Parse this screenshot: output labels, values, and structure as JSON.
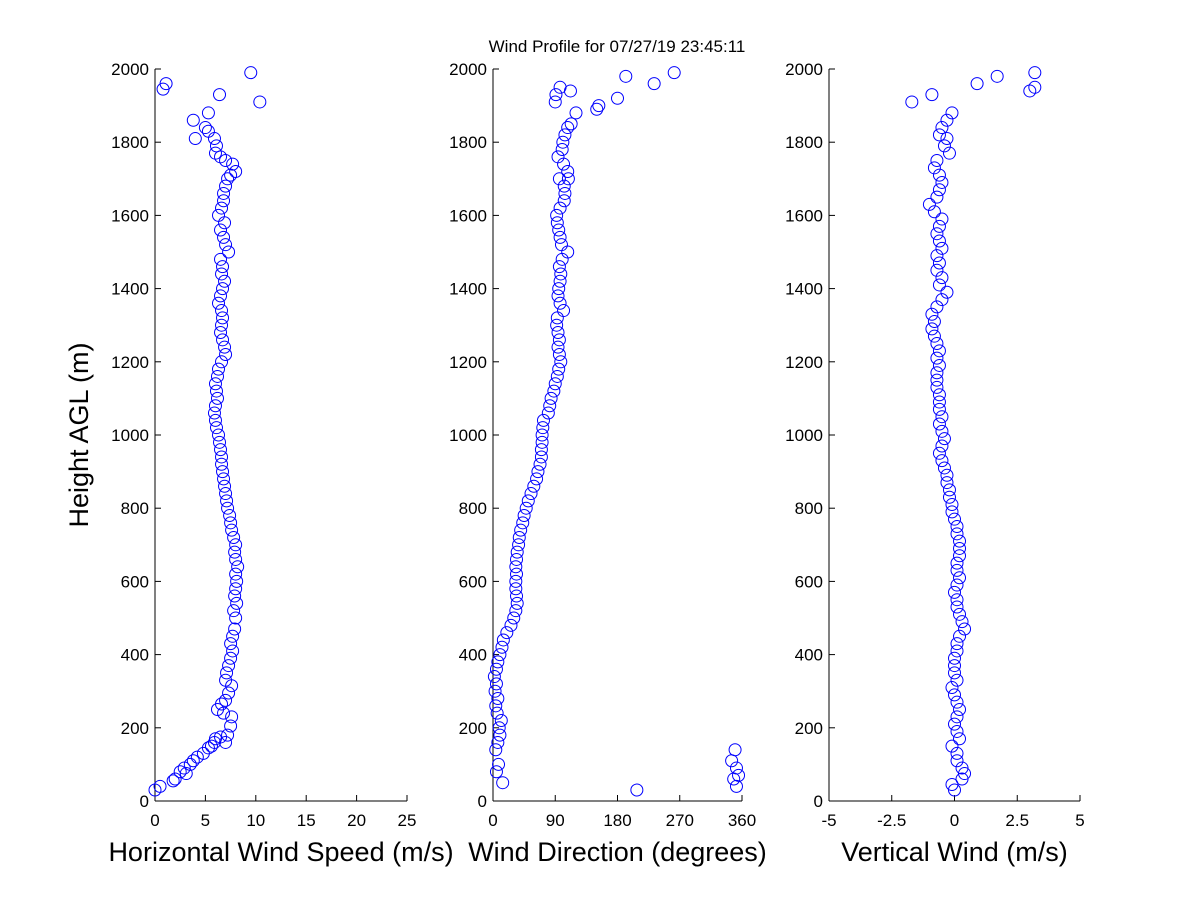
{
  "title": "Wind Profile for  07/27/19 23:45:11",
  "ylabel": "Height AGL (m)",
  "marker_color": "#0000ff",
  "chart_data": [
    {
      "type": "scatter",
      "xlabel": "Horizontal Wind Speed (m/s)",
      "xlim": [
        0,
        25
      ],
      "xticks": [
        "0",
        "5",
        "10",
        "15",
        "20",
        "25"
      ],
      "ylim": [
        0,
        2000
      ],
      "yticks": [
        "0",
        "200",
        "400",
        "600",
        "800",
        "1000",
        "1200",
        "1400",
        "1600",
        "1800",
        "2000"
      ],
      "points": [
        [
          0.0,
          30
        ],
        [
          0.5,
          40
        ],
        [
          1.8,
          55
        ],
        [
          2.0,
          60
        ],
        [
          2.5,
          80
        ],
        [
          2.9,
          90
        ],
        [
          3.1,
          75
        ],
        [
          3.5,
          100
        ],
        [
          3.8,
          110
        ],
        [
          4.2,
          120
        ],
        [
          4.8,
          130
        ],
        [
          5.3,
          145
        ],
        [
          5.6,
          150
        ],
        [
          5.9,
          160
        ],
        [
          6.5,
          175
        ],
        [
          6.0,
          170
        ],
        [
          7.0,
          160
        ],
        [
          7.2,
          180
        ],
        [
          7.5,
          205
        ],
        [
          7.6,
          230
        ],
        [
          6.8,
          240
        ],
        [
          6.2,
          250
        ],
        [
          6.6,
          265
        ],
        [
          7.0,
          275
        ],
        [
          7.3,
          295
        ],
        [
          7.6,
          315
        ],
        [
          7.0,
          330
        ],
        [
          7.1,
          350
        ],
        [
          7.3,
          370
        ],
        [
          7.5,
          390
        ],
        [
          7.7,
          410
        ],
        [
          7.5,
          430
        ],
        [
          7.7,
          450
        ],
        [
          7.9,
          470
        ],
        [
          8.0,
          500
        ],
        [
          7.8,
          520
        ],
        [
          8.1,
          540
        ],
        [
          7.9,
          560
        ],
        [
          8.0,
          580
        ],
        [
          8.1,
          600
        ],
        [
          8.0,
          620
        ],
        [
          8.2,
          640
        ],
        [
          8.0,
          660
        ],
        [
          7.9,
          680
        ],
        [
          8.0,
          700
        ],
        [
          7.8,
          720
        ],
        [
          7.6,
          740
        ],
        [
          7.5,
          760
        ],
        [
          7.4,
          780
        ],
        [
          7.2,
          800
        ],
        [
          7.1,
          820
        ],
        [
          7.0,
          840
        ],
        [
          6.9,
          860
        ],
        [
          6.8,
          880
        ],
        [
          6.7,
          900
        ],
        [
          6.6,
          920
        ],
        [
          6.6,
          940
        ],
        [
          6.5,
          960
        ],
        [
          6.4,
          980
        ],
        [
          6.3,
          1000
        ],
        [
          6.1,
          1020
        ],
        [
          6.0,
          1040
        ],
        [
          5.9,
          1060
        ],
        [
          6.0,
          1080
        ],
        [
          6.2,
          1100
        ],
        [
          6.1,
          1120
        ],
        [
          6.0,
          1140
        ],
        [
          6.2,
          1160
        ],
        [
          6.3,
          1180
        ],
        [
          6.6,
          1200
        ],
        [
          7.0,
          1220
        ],
        [
          6.9,
          1240
        ],
        [
          6.7,
          1260
        ],
        [
          6.5,
          1280
        ],
        [
          6.6,
          1300
        ],
        [
          6.7,
          1320
        ],
        [
          6.6,
          1340
        ],
        [
          6.3,
          1360
        ],
        [
          6.5,
          1380
        ],
        [
          6.7,
          1400
        ],
        [
          6.9,
          1420
        ],
        [
          6.6,
          1440
        ],
        [
          6.7,
          1460
        ],
        [
          6.5,
          1480
        ],
        [
          7.3,
          1500
        ],
        [
          7.0,
          1520
        ],
        [
          6.8,
          1540
        ],
        [
          6.5,
          1560
        ],
        [
          6.9,
          1580
        ],
        [
          6.3,
          1600
        ],
        [
          6.6,
          1620
        ],
        [
          6.8,
          1640
        ],
        [
          6.8,
          1660
        ],
        [
          7.0,
          1680
        ],
        [
          7.2,
          1700
        ],
        [
          7.5,
          1710
        ],
        [
          8.0,
          1720
        ],
        [
          7.7,
          1740
        ],
        [
          7.0,
          1750
        ],
        [
          6.5,
          1760
        ],
        [
          6.0,
          1770
        ],
        [
          6.1,
          1790
        ],
        [
          5.9,
          1810
        ],
        [
          5.3,
          1830
        ],
        [
          5.0,
          1840
        ],
        [
          3.8,
          1860
        ],
        [
          4.0,
          1810
        ],
        [
          5.3,
          1880
        ],
        [
          6.4,
          1930
        ],
        [
          0.8,
          1945
        ],
        [
          1.1,
          1960
        ],
        [
          10.4,
          1910
        ],
        [
          9.5,
          1990
        ]
      ]
    },
    {
      "type": "scatter",
      "xlabel": "Wind Direction (degrees)",
      "xlim": [
        0,
        360
      ],
      "xticks": [
        "0",
        "90",
        "180",
        "270",
        "360"
      ],
      "ylim": [
        0,
        2000
      ],
      "yticks": [
        "0",
        "200",
        "400",
        "600",
        "800",
        "1000",
        "1200",
        "1400",
        "1600",
        "1800",
        "2000"
      ],
      "points": [
        [
          14,
          50
        ],
        [
          5,
          80
        ],
        [
          8,
          100
        ],
        [
          4,
          140
        ],
        [
          7,
          160
        ],
        [
          10,
          180
        ],
        [
          9,
          200
        ],
        [
          12,
          220
        ],
        [
          6,
          240
        ],
        [
          4,
          260
        ],
        [
          7,
          280
        ],
        [
          3,
          300
        ],
        [
          5,
          320
        ],
        [
          2,
          340
        ],
        [
          5,
          360
        ],
        [
          7,
          380
        ],
        [
          10,
          400
        ],
        [
          13,
          420
        ],
        [
          15,
          440
        ],
        [
          20,
          460
        ],
        [
          26,
          480
        ],
        [
          30,
          500
        ],
        [
          33,
          520
        ],
        [
          35,
          540
        ],
        [
          34,
          560
        ],
        [
          33,
          580
        ],
        [
          33,
          600
        ],
        [
          34,
          620
        ],
        [
          33,
          640
        ],
        [
          34,
          660
        ],
        [
          35,
          680
        ],
        [
          37,
          700
        ],
        [
          38,
          720
        ],
        [
          40,
          740
        ],
        [
          43,
          760
        ],
        [
          45,
          780
        ],
        [
          48,
          800
        ],
        [
          51,
          820
        ],
        [
          55,
          840
        ],
        [
          59,
          860
        ],
        [
          63,
          880
        ],
        [
          65,
          900
        ],
        [
          68,
          920
        ],
        [
          70,
          940
        ],
        [
          70,
          960
        ],
        [
          71,
          980
        ],
        [
          71,
          1000
        ],
        [
          72,
          1020
        ],
        [
          73,
          1040
        ],
        [
          80,
          1060
        ],
        [
          82,
          1080
        ],
        [
          84,
          1100
        ],
        [
          88,
          1120
        ],
        [
          90,
          1140
        ],
        [
          93,
          1160
        ],
        [
          95,
          1180
        ],
        [
          98,
          1200
        ],
        [
          96,
          1220
        ],
        [
          94,
          1240
        ],
        [
          96,
          1260
        ],
        [
          94,
          1280
        ],
        [
          92,
          1300
        ],
        [
          93,
          1320
        ],
        [
          102,
          1340
        ],
        [
          97,
          1360
        ],
        [
          94,
          1380
        ],
        [
          95,
          1400
        ],
        [
          97,
          1420
        ],
        [
          98,
          1440
        ],
        [
          96,
          1460
        ],
        [
          100,
          1480
        ],
        [
          108,
          1500
        ],
        [
          99,
          1520
        ],
        [
          97,
          1540
        ],
        [
          95,
          1560
        ],
        [
          93,
          1580
        ],
        [
          92,
          1600
        ],
        [
          97,
          1620
        ],
        [
          103,
          1640
        ],
        [
          104,
          1660
        ],
        [
          103,
          1680
        ],
        [
          96,
          1700
        ],
        [
          109,
          1700
        ],
        [
          108,
          1720
        ],
        [
          102,
          1740
        ],
        [
          94,
          1760
        ],
        [
          100,
          1780
        ],
        [
          101,
          1800
        ],
        [
          104,
          1820
        ],
        [
          108,
          1840
        ],
        [
          113,
          1850
        ],
        [
          120,
          1880
        ],
        [
          150,
          1890
        ],
        [
          153,
          1900
        ],
        [
          90,
          1910
        ],
        [
          91,
          1930
        ],
        [
          97,
          1950
        ],
        [
          112,
          1940
        ],
        [
          180,
          1920
        ],
        [
          192,
          1980
        ],
        [
          233,
          1960
        ],
        [
          262,
          1990
        ],
        [
          208,
          30
        ],
        [
          352,
          40
        ],
        [
          348,
          60
        ],
        [
          355,
          70
        ],
        [
          345,
          110
        ],
        [
          350,
          140
        ],
        [
          352,
          90
        ]
      ]
    },
    {
      "type": "scatter",
      "xlabel": "Vertical Wind (m/s)",
      "xlim": [
        -5,
        5
      ],
      "xticks": [
        "-5",
        "-2.5",
        "0",
        "2.5",
        "5"
      ],
      "ylim": [
        0,
        2000
      ],
      "yticks": [
        "0",
        "200",
        "400",
        "600",
        "800",
        "1000",
        "1200",
        "1400",
        "1600",
        "1800",
        "2000"
      ],
      "points": [
        [
          0.0,
          30
        ],
        [
          -0.1,
          45
        ],
        [
          0.3,
          60
        ],
        [
          0.4,
          75
        ],
        [
          0.3,
          90
        ],
        [
          0.1,
          110
        ],
        [
          0.1,
          130
        ],
        [
          -0.1,
          150
        ],
        [
          0.2,
          170
        ],
        [
          0.1,
          190
        ],
        [
          0.0,
          210
        ],
        [
          0.1,
          230
        ],
        [
          0.2,
          250
        ],
        [
          0.1,
          270
        ],
        [
          0.0,
          290
        ],
        [
          -0.1,
          310
        ],
        [
          0.1,
          330
        ],
        [
          0.0,
          350
        ],
        [
          0.0,
          370
        ],
        [
          0.0,
          390
        ],
        [
          0.1,
          410
        ],
        [
          0.1,
          430
        ],
        [
          0.2,
          450
        ],
        [
          0.4,
          470
        ],
        [
          0.3,
          490
        ],
        [
          0.2,
          510
        ],
        [
          0.1,
          530
        ],
        [
          0.1,
          550
        ],
        [
          0.0,
          570
        ],
        [
          0.1,
          590
        ],
        [
          0.2,
          610
        ],
        [
          0.1,
          630
        ],
        [
          0.1,
          650
        ],
        [
          0.2,
          670
        ],
        [
          0.2,
          690
        ],
        [
          0.2,
          710
        ],
        [
          0.1,
          730
        ],
        [
          0.1,
          750
        ],
        [
          0.0,
          770
        ],
        [
          -0.1,
          790
        ],
        [
          -0.1,
          810
        ],
        [
          -0.2,
          830
        ],
        [
          -0.2,
          850
        ],
        [
          -0.3,
          870
        ],
        [
          -0.3,
          890
        ],
        [
          -0.4,
          910
        ],
        [
          -0.5,
          930
        ],
        [
          -0.6,
          950
        ],
        [
          -0.5,
          970
        ],
        [
          -0.4,
          990
        ],
        [
          -0.5,
          1010
        ],
        [
          -0.6,
          1030
        ],
        [
          -0.5,
          1050
        ],
        [
          -0.6,
          1070
        ],
        [
          -0.6,
          1090
        ],
        [
          -0.6,
          1110
        ],
        [
          -0.7,
          1130
        ],
        [
          -0.7,
          1150
        ],
        [
          -0.7,
          1170
        ],
        [
          -0.6,
          1190
        ],
        [
          -0.7,
          1210
        ],
        [
          -0.6,
          1230
        ],
        [
          -0.7,
          1250
        ],
        [
          -0.8,
          1270
        ],
        [
          -0.9,
          1290
        ],
        [
          -0.8,
          1310
        ],
        [
          -0.9,
          1330
        ],
        [
          -0.7,
          1350
        ],
        [
          -0.5,
          1370
        ],
        [
          -0.3,
          1390
        ],
        [
          -0.6,
          1410
        ],
        [
          -0.5,
          1430
        ],
        [
          -0.7,
          1450
        ],
        [
          -0.6,
          1470
        ],
        [
          -0.7,
          1490
        ],
        [
          -0.5,
          1510
        ],
        [
          -0.6,
          1530
        ],
        [
          -0.7,
          1550
        ],
        [
          -0.6,
          1570
        ],
        [
          -0.5,
          1590
        ],
        [
          -0.8,
          1610
        ],
        [
          -1.0,
          1630
        ],
        [
          -0.7,
          1650
        ],
        [
          -0.6,
          1670
        ],
        [
          -0.5,
          1690
        ],
        [
          -0.6,
          1710
        ],
        [
          -0.8,
          1730
        ],
        [
          -0.7,
          1750
        ],
        [
          -0.2,
          1770
        ],
        [
          -0.4,
          1790
        ],
        [
          -0.3,
          1810
        ],
        [
          -0.6,
          1820
        ],
        [
          -0.5,
          1840
        ],
        [
          -0.3,
          1860
        ],
        [
          -0.1,
          1880
        ],
        [
          -0.9,
          1930
        ],
        [
          -1.7,
          1910
        ],
        [
          0.9,
          1960
        ],
        [
          1.7,
          1980
        ],
        [
          3.0,
          1940
        ],
        [
          3.2,
          1950
        ],
        [
          3.2,
          1990
        ]
      ]
    }
  ]
}
